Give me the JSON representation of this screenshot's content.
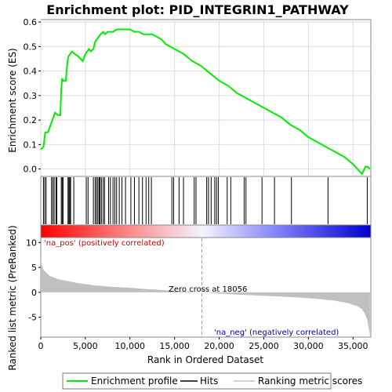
{
  "chart_data": {
    "type": "line",
    "title": "Enrichment plot: PID_INTEGRIN1_PATHWAY",
    "top_panel": {
      "ylabel": "Enrichment score (ES)",
      "ylim": [
        -0.03,
        0.61
      ],
      "yticks": [
        "0.0",
        "0.1",
        "0.2",
        "0.3",
        "0.4",
        "0.5",
        "0.6"
      ],
      "ytick_values": [
        0.0,
        0.1,
        0.2,
        0.3,
        0.4,
        0.5,
        0.6
      ],
      "grid": true,
      "series": [
        {
          "name": "Enrichment profile",
          "color": "#00ee00",
          "x": [
            0,
            300,
            500,
            800,
            1100,
            1300,
            1600,
            1900,
            2200,
            2300,
            2400,
            2500,
            2800,
            3000,
            3100,
            3300,
            3500,
            3800,
            4200,
            4700,
            5000,
            5200,
            5400,
            5600,
            5900,
            6100,
            6300,
            6500,
            6700,
            7000,
            7200,
            7500,
            7800,
            8100,
            8500,
            8800,
            9100,
            9500,
            10000,
            10500,
            11000,
            11500,
            12000,
            12500,
            13000,
            13500,
            14000,
            14500,
            15000,
            16000,
            17000,
            18000,
            19000,
            20000,
            21000,
            22000,
            23000,
            24000,
            25000,
            26000,
            27000,
            28000,
            29000,
            30000,
            31000,
            32000,
            33000,
            34000,
            35000,
            36000,
            36400,
            36600,
            36900
          ],
          "values": [
            0.08,
            0.09,
            0.15,
            0.15,
            0.18,
            0.2,
            0.23,
            0.22,
            0.22,
            0.33,
            0.37,
            0.36,
            0.36,
            0.44,
            0.46,
            0.47,
            0.48,
            0.47,
            0.46,
            0.44,
            0.47,
            0.48,
            0.49,
            0.48,
            0.49,
            0.52,
            0.53,
            0.54,
            0.55,
            0.56,
            0.55,
            0.56,
            0.56,
            0.56,
            0.57,
            0.57,
            0.57,
            0.57,
            0.57,
            0.56,
            0.56,
            0.55,
            0.55,
            0.55,
            0.54,
            0.53,
            0.51,
            0.5,
            0.49,
            0.47,
            0.44,
            0.42,
            0.39,
            0.36,
            0.34,
            0.31,
            0.29,
            0.27,
            0.25,
            0.23,
            0.21,
            0.18,
            0.16,
            0.13,
            0.11,
            0.09,
            0.07,
            0.05,
            0.02,
            -0.02,
            0.01,
            0.01,
            0.0
          ]
        }
      ]
    },
    "hits_panel": {
      "positions": [
        300,
        450,
        600,
        1200,
        1350,
        1500,
        1700,
        1800,
        2300,
        2400,
        2500,
        3050,
        3150,
        3250,
        3350,
        3700,
        5100,
        5300,
        5900,
        6100,
        6250,
        6400,
        6550,
        6650,
        6800,
        7000,
        7150,
        7600,
        7800,
        8100,
        8300,
        8500,
        8800,
        9100,
        9500,
        10100,
        10500,
        11000,
        11400,
        11800,
        12100,
        12400,
        14700,
        14900,
        15500,
        16000,
        17200,
        17400,
        18600,
        18800,
        19100,
        19500,
        19700,
        19900,
        20900,
        21300,
        22800,
        23000,
        24800,
        26200,
        28100,
        32200,
        36600
      ]
    },
    "ranked_panel": {
      "ylabel": "Ranked list metric (PreRanked)",
      "xlabel": "Rank in Ordered Dataset",
      "ylim": [
        -9,
        11
      ],
      "yticks": [
        "10",
        "5",
        "0",
        "-5"
      ],
      "ytick_values": [
        10,
        5,
        0,
        -5
      ],
      "xticks": [
        "0",
        "5,000",
        "10,000",
        "15,000",
        "20,000",
        "25,000",
        "30,000",
        "35,000"
      ],
      "xtick_values": [
        0,
        5000,
        10000,
        15000,
        20000,
        25000,
        30000,
        35000
      ],
      "xlim": [
        0,
        37000
      ],
      "n_genes": 36900,
      "metric_x": [
        0,
        300,
        1000,
        2000,
        4000,
        6000,
        8000,
        10000,
        12000,
        14000,
        16000,
        18056,
        20000,
        22000,
        25000,
        28000,
        31000,
        33000,
        34500,
        35500,
        36000,
        36300,
        36600,
        36800,
        36900
      ],
      "metric_y": [
        6.5,
        4.5,
        3.3,
        2.6,
        1.9,
        1.4,
        1.1,
        0.9,
        0.65,
        0.4,
        0.2,
        0.0,
        -0.25,
        -0.45,
        -0.7,
        -0.95,
        -1.3,
        -1.7,
        -2.2,
        -2.8,
        -3.4,
        -4.2,
        -5.5,
        -7.5,
        -8.8
      ],
      "zero_cross_label": "Zero cross at 18056",
      "zero_cross": 18056,
      "pos_label": "'na_pos' (positively correlated)",
      "neg_label": "'na_neg' (negatively correlated)"
    },
    "legend": {
      "placement": "bottom",
      "items": [
        "Enrichment profile",
        "Hits",
        "Ranking metric scores"
      ]
    }
  },
  "colors": {
    "profile": "#00ee00",
    "hits": "#000000",
    "metric_fill": "#c0c0c0",
    "grid": "#dddddd",
    "pos_text": "#cc0000",
    "neg_text": "#0000aa",
    "heat_red": "#ff0000",
    "heat_blue": "#0000cc"
  }
}
